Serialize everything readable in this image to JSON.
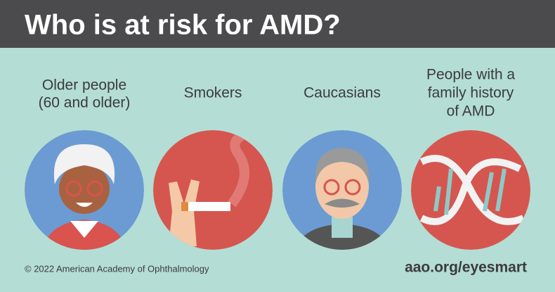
{
  "header": {
    "title": "Who is at risk for AMD?"
  },
  "items": [
    {
      "lines": [
        "Older people",
        "(60 and older)"
      ]
    },
    {
      "lines": [
        "Smokers"
      ]
    },
    {
      "lines": [
        "Caucasians"
      ]
    },
    {
      "lines": [
        "People with a",
        "family history",
        "of AMD"
      ]
    }
  ],
  "footer": {
    "copyright": "© 2022 American Academy of Ophthalmology",
    "link": "aao.org/eyesmart"
  }
}
